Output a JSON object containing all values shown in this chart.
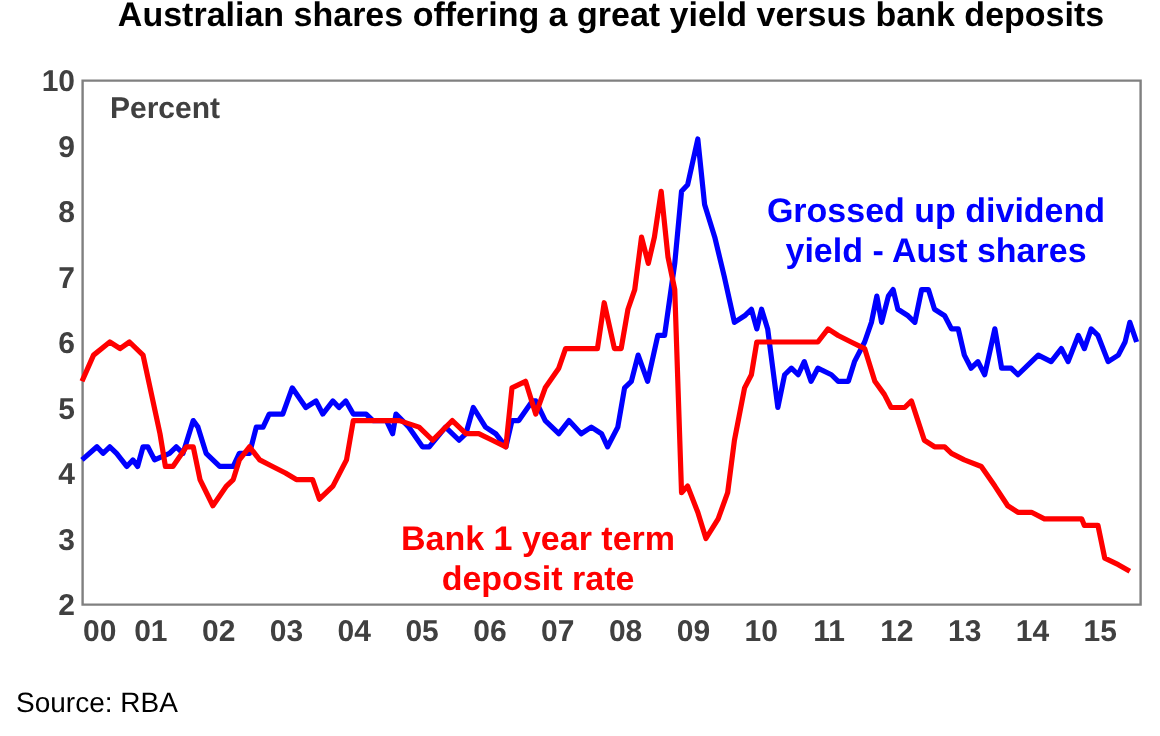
{
  "chart_data": {
    "type": "line",
    "title": "Australian shares offering a great yield versus bank deposits",
    "ylabel": "Percent",
    "annotations": [
      "Source: RBA"
    ],
    "xlim": [
      2000,
      2015.6
    ],
    "xticks": [
      {
        "value": 2000,
        "label": "00"
      },
      {
        "value": 2001,
        "label": "01"
      },
      {
        "value": 2002,
        "label": "02"
      },
      {
        "value": 2003,
        "label": "03"
      },
      {
        "value": 2004,
        "label": "04"
      },
      {
        "value": 2005,
        "label": "05"
      },
      {
        "value": 2006,
        "label": "06"
      },
      {
        "value": 2007,
        "label": "07"
      },
      {
        "value": 2008,
        "label": "08"
      },
      {
        "value": 2009,
        "label": "09"
      },
      {
        "value": 2010,
        "label": "10"
      },
      {
        "value": 2011,
        "label": "11"
      },
      {
        "value": 2012,
        "label": "12"
      },
      {
        "value": 2013,
        "label": "13"
      },
      {
        "value": 2014,
        "label": "14"
      },
      {
        "value": 2015,
        "label": "15"
      }
    ],
    "ylim": [
      2,
      10
    ],
    "yticks": [
      2,
      3,
      4,
      5,
      6,
      7,
      8,
      9,
      10
    ],
    "grid": false,
    "legend": false,
    "line_style": "solid",
    "marker": "none",
    "series": [
      {
        "name": "Grossed up dividend yield - Aust shares",
        "color": "#0000ff",
        "x": [
          2000,
          2000.22,
          2000.31,
          2000.41,
          2000.51,
          2000.66,
          2000.75,
          2000.82,
          2000.9,
          2000.97,
          2001.07,
          2001.29,
          2001.39,
          2001.49,
          2001.64,
          2001.71,
          2001.83,
          2002.03,
          2002.23,
          2002.32,
          2002.47,
          2002.57,
          2002.67,
          2002.76,
          2002.96,
          2003.1,
          2003.3,
          2003.45,
          2003.55,
          2003.7,
          2003.79,
          2003.89,
          2004.0,
          2004.19,
          2004.29,
          2004.49,
          2004.58,
          2004.63,
          2004.82,
          2005.02,
          2005.12,
          2005.36,
          2005.56,
          2005.66,
          2005.77,
          2005.95,
          2006.1,
          2006.25,
          2006.34,
          2006.44,
          2006.64,
          2006.69,
          2006.83,
          2007.03,
          2007.18,
          2007.36,
          2007.51,
          2007.66,
          2007.75,
          2007.9,
          2008.0,
          2008.1,
          2008.2,
          2008.34,
          2008.49,
          2008.59,
          2008.74,
          2008.84,
          2008.93,
          2009.08,
          2009.18,
          2009.33,
          2009.47,
          2009.62,
          2009.77,
          2009.87,
          2009.95,
          2010.02,
          2010.11,
          2010.26,
          2010.36,
          2010.46,
          2010.56,
          2010.65,
          2010.75,
          2010.85,
          2011.05,
          2011.15,
          2011.3,
          2011.39,
          2011.54,
          2011.64,
          2011.72,
          2011.79,
          2011.89,
          2011.96,
          2012.03,
          2012.18,
          2012.28,
          2012.38,
          2012.48,
          2012.57,
          2012.72,
          2012.82,
          2012.92,
          2013.01,
          2013.11,
          2013.21,
          2013.31,
          2013.46,
          2013.56,
          2013.7,
          2013.8,
          2014.0,
          2014.1,
          2014.29,
          2014.44,
          2014.54,
          2014.69,
          2014.78,
          2014.88,
          2014.98,
          2015.13,
          2015.28,
          2015.38,
          2015.45,
          2015.55
        ],
        "values": [
          4.2,
          4.4,
          4.3,
          4.4,
          4.3,
          4.1,
          4.2,
          4.1,
          4.4,
          4.4,
          4.2,
          4.3,
          4.4,
          4.3,
          4.8,
          4.7,
          4.3,
          4.1,
          4.1,
          4.3,
          4.3,
          4.7,
          4.7,
          4.9,
          4.9,
          5.3,
          5.0,
          5.1,
          4.9,
          5.1,
          5.0,
          5.1,
          4.9,
          4.9,
          4.8,
          4.8,
          4.6,
          4.9,
          4.7,
          4.4,
          4.4,
          4.7,
          4.5,
          4.6,
          5.0,
          4.7,
          4.6,
          4.4,
          4.8,
          4.8,
          5.1,
          5.1,
          4.8,
          4.6,
          4.8,
          4.6,
          4.7,
          4.6,
          4.4,
          4.7,
          5.3,
          5.4,
          5.8,
          5.4,
          6.1,
          6.1,
          7.2,
          8.3,
          8.4,
          9.1,
          8.1,
          7.6,
          7.0,
          6.3,
          6.4,
          6.5,
          6.2,
          6.5,
          6.2,
          5.0,
          5.5,
          5.6,
          5.5,
          5.7,
          5.4,
          5.6,
          5.5,
          5.4,
          5.4,
          5.7,
          6.0,
          6.3,
          6.7,
          6.3,
          6.7,
          6.8,
          6.5,
          6.4,
          6.3,
          6.8,
          6.8,
          6.5,
          6.4,
          6.2,
          6.2,
          5.8,
          5.6,
          5.7,
          5.5,
          6.2,
          5.6,
          5.6,
          5.5,
          5.7,
          5.8,
          5.7,
          5.9,
          5.7,
          6.1,
          5.9,
          6.2,
          6.1,
          5.7,
          5.8,
          6.0,
          6.3,
          6.0
        ]
      },
      {
        "name": "Bank 1 year term deposit rate",
        "color": "#ff0000",
        "x": [
          2000,
          2000.17,
          2000.41,
          2000.56,
          2000.7,
          2000.9,
          2001.15,
          2001.23,
          2001.34,
          2001.54,
          2001.64,
          2001.74,
          2001.93,
          2002.13,
          2002.23,
          2002.32,
          2002.47,
          2002.62,
          2002.81,
          2003.0,
          2003.16,
          2003.4,
          2003.5,
          2003.7,
          2003.9,
          2004.0,
          2004.2,
          2004.4,
          2004.68,
          2004.97,
          2005.17,
          2005.46,
          2005.66,
          2005.85,
          2006.05,
          2006.25,
          2006.34,
          2006.54,
          2006.69,
          2006.83,
          2007.03,
          2007.13,
          2007.3,
          2007.41,
          2007.6,
          2007.7,
          2007.85,
          2007.95,
          2008.05,
          2008.15,
          2008.25,
          2008.35,
          2008.44,
          2008.54,
          2008.64,
          2008.74,
          2008.84,
          2008.93,
          2009.08,
          2009.2,
          2009.38,
          2009.52,
          2009.62,
          2009.77,
          2009.87,
          2009.95,
          2010.16,
          2010.85,
          2011.0,
          2011.15,
          2011.34,
          2011.54,
          2011.69,
          2011.83,
          2011.93,
          2012.13,
          2012.23,
          2012.42,
          2012.57,
          2012.72,
          2012.82,
          2013.01,
          2013.26,
          2013.46,
          2013.65,
          2013.8,
          2014.0,
          2014.19,
          2014.74,
          2014.78,
          2014.98,
          2015.08,
          2015.28,
          2015.45
        ],
        "values": [
          5.4,
          5.8,
          6.0,
          5.9,
          6.0,
          5.8,
          4.6,
          4.1,
          4.1,
          4.4,
          4.4,
          3.9,
          3.5,
          3.8,
          3.9,
          4.2,
          4.4,
          4.2,
          4.1,
          4.0,
          3.9,
          3.9,
          3.6,
          3.8,
          4.2,
          4.8,
          4.8,
          4.8,
          4.8,
          4.7,
          4.5,
          4.8,
          4.6,
          4.6,
          4.5,
          4.4,
          5.3,
          5.4,
          4.9,
          5.3,
          5.6,
          5.9,
          5.9,
          5.9,
          5.9,
          6.6,
          5.9,
          5.9,
          6.5,
          6.8,
          7.6,
          7.2,
          7.6,
          8.3,
          7.3,
          6.8,
          3.7,
          3.8,
          3.4,
          3.0,
          3.3,
          3.7,
          4.5,
          5.3,
          5.5,
          6.0,
          6.0,
          6.0,
          6.2,
          6.1,
          6.0,
          5.9,
          5.4,
          5.2,
          5.0,
          5.0,
          5.1,
          4.5,
          4.4,
          4.4,
          4.3,
          4.2,
          4.1,
          3.8,
          3.5,
          3.4,
          3.4,
          3.3,
          3.3,
          3.2,
          3.2,
          2.7,
          2.6,
          2.5
        ]
      }
    ]
  }
}
